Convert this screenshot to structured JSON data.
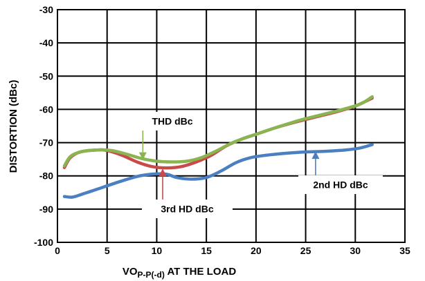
{
  "chart_data": {
    "type": "line",
    "xlabel_parts": [
      "VO",
      "P-P(-d)",
      " AT THE LOAD"
    ],
    "ylabel": "DISTORTION (dBc)",
    "xlim": [
      0,
      35
    ],
    "ylim": [
      -100,
      -30
    ],
    "xticks": [
      0,
      5,
      10,
      15,
      20,
      25,
      30,
      35
    ],
    "yticks": [
      -30,
      -40,
      -50,
      -60,
      -70,
      -80,
      -90,
      -100
    ],
    "xtick_labels": [
      "0",
      "5",
      "10",
      "15",
      "20",
      "25",
      "30",
      "35"
    ],
    "ytick_labels": [
      "-30",
      "-40",
      "-50",
      "-60",
      "-70",
      "-80",
      "-90",
      "-100"
    ],
    "grid": true,
    "series": [
      {
        "name": "2nd HD dBc",
        "color": "#4a7fc1",
        "points": [
          [
            0.7,
            -86.2
          ],
          [
            1.5,
            -86.4
          ],
          [
            2.5,
            -85.5
          ],
          [
            4,
            -84
          ],
          [
            6,
            -82
          ],
          [
            8,
            -80.2
          ],
          [
            9.5,
            -79.5
          ],
          [
            11,
            -79.5
          ],
          [
            12,
            -80.5
          ],
          [
            13.5,
            -81
          ],
          [
            15,
            -80.5
          ],
          [
            16.5,
            -78.5
          ],
          [
            18,
            -76
          ],
          [
            19.5,
            -74.5
          ],
          [
            21,
            -73.8
          ],
          [
            23,
            -73.2
          ],
          [
            25,
            -72.8
          ],
          [
            27,
            -72.6
          ],
          [
            29,
            -72.2
          ],
          [
            30.5,
            -71.6
          ],
          [
            31.7,
            -70.6
          ]
        ]
      },
      {
        "name": "3rd HD dBc",
        "color": "#c94a4a",
        "points": [
          [
            0.7,
            -77.5
          ],
          [
            1.3,
            -74.5
          ],
          [
            2.3,
            -72.8
          ],
          [
            4,
            -72.2
          ],
          [
            5,
            -72.4
          ],
          [
            6.5,
            -73.8
          ],
          [
            8,
            -75.8
          ],
          [
            9.5,
            -77.2
          ],
          [
            11,
            -77.6
          ],
          [
            12.5,
            -77.2
          ],
          [
            14,
            -75.8
          ],
          [
            15.5,
            -73.8
          ],
          [
            17,
            -71
          ],
          [
            18.5,
            -69
          ],
          [
            20,
            -67.5
          ],
          [
            22,
            -65.5
          ],
          [
            24,
            -63.8
          ],
          [
            26,
            -62.3
          ],
          [
            28,
            -60.8
          ],
          [
            30,
            -59
          ],
          [
            31.7,
            -56.6
          ]
        ]
      },
      {
        "name": "THD dBc",
        "color": "#8ab44f",
        "points": [
          [
            0.7,
            -77
          ],
          [
            1.3,
            -74.2
          ],
          [
            2.3,
            -72.8
          ],
          [
            4,
            -72.2
          ],
          [
            5.5,
            -72.4
          ],
          [
            7,
            -73.5
          ],
          [
            8.5,
            -74.8
          ],
          [
            10,
            -75.6
          ],
          [
            11.5,
            -75.8
          ],
          [
            13,
            -75.6
          ],
          [
            14.5,
            -74.5
          ],
          [
            16,
            -72.5
          ],
          [
            17.5,
            -70.2
          ],
          [
            19,
            -68.5
          ],
          [
            20.5,
            -67
          ],
          [
            22.5,
            -65
          ],
          [
            24.5,
            -63.2
          ],
          [
            26.5,
            -61.7
          ],
          [
            28.5,
            -60.2
          ],
          [
            30.5,
            -58.4
          ],
          [
            31.7,
            -56.2
          ]
        ]
      }
    ],
    "annotations": [
      {
        "text": "THD dBc",
        "series": "THD dBc"
      },
      {
        "text": "3rd HD dBc",
        "series": "3rd HD dBc"
      },
      {
        "text": "2nd HD dBc",
        "series": "2nd HD dBc"
      }
    ]
  }
}
